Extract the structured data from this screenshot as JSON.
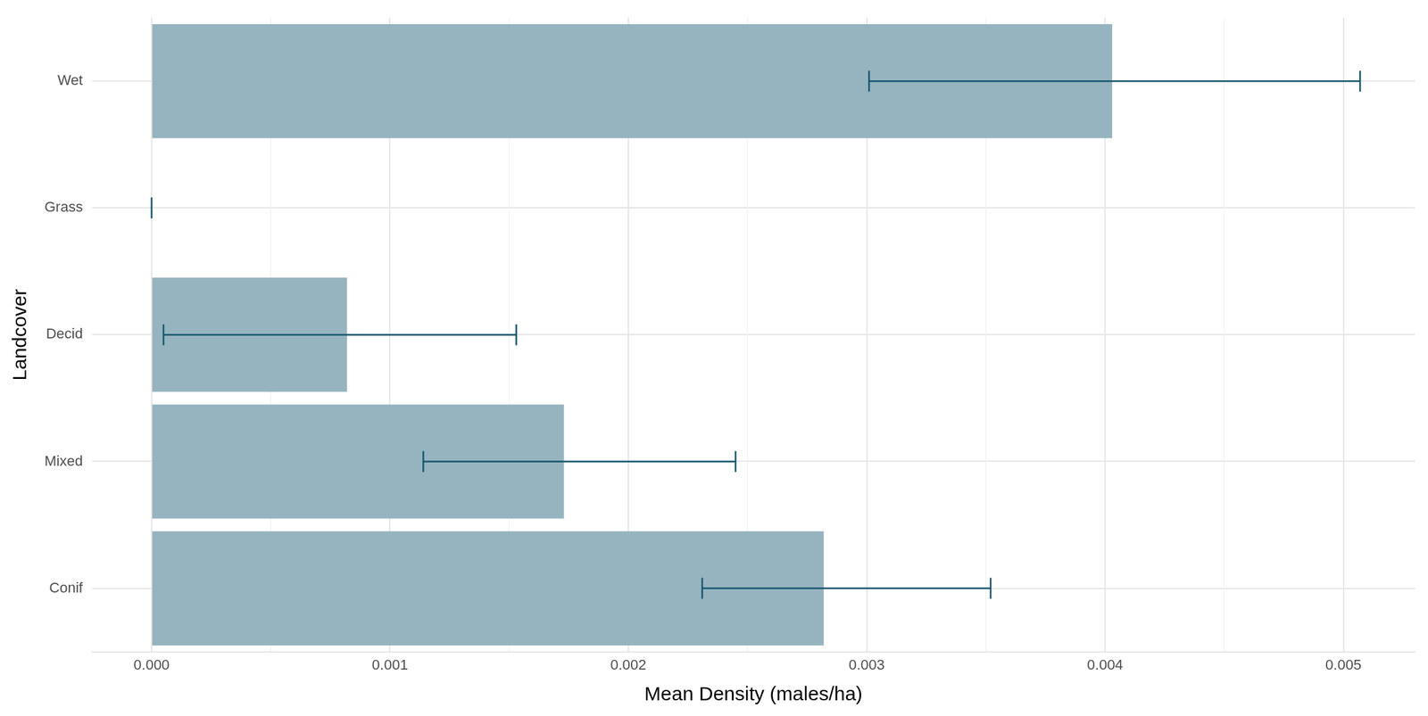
{
  "chart_data": {
    "type": "bar",
    "orientation": "horizontal",
    "x_label": "Mean Density (males/ha)",
    "y_label": "Landcover",
    "categories": [
      "Wet",
      "Grass",
      "Decid",
      "Mixed",
      "Conif"
    ],
    "values": [
      0.00403,
      0,
      0.00082,
      0.00173,
      0.00282
    ],
    "error_low": [
      0.00301,
      0,
      5e-05,
      0.00114,
      0.00231
    ],
    "error_high": [
      0.00507,
      0,
      0.00153,
      0.00245,
      0.00352
    ],
    "color": "#96b4bf",
    "error_color": "#17566e",
    "xlim": [
      -0.00025,
      0.0053
    ],
    "xticks": [
      {
        "value": 0,
        "label": "0.000"
      },
      0.001,
      0.002,
      0.003,
      0.004,
      0.005
    ],
    "grid": true
  }
}
